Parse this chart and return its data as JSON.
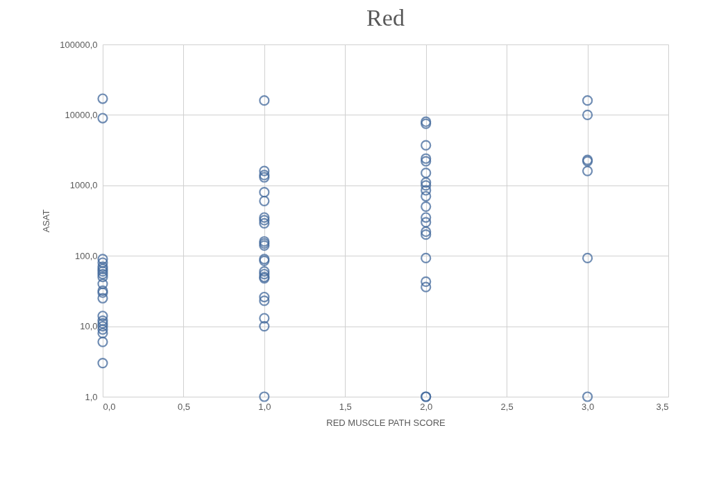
{
  "chart_data": {
    "type": "scatter",
    "title": "Red",
    "xlabel": "RED MUSCLE PATH SCORE",
    "ylabel": "ASAT",
    "series": [
      {
        "color": "#41689b",
        "x": [
          0,
          0,
          0,
          0,
          0,
          0,
          0,
          0,
          0,
          0,
          0,
          0,
          0,
          0,
          0,
          0,
          0,
          0,
          0,
          0,
          0,
          1,
          1,
          1,
          1,
          1,
          1,
          1,
          1,
          1,
          1,
          1,
          1,
          1,
          1,
          1,
          1,
          1,
          1,
          1,
          1,
          1,
          1,
          1,
          2,
          2,
          2,
          2,
          2,
          2,
          2,
          2,
          2,
          2,
          2,
          2,
          2,
          2,
          2,
          2,
          2,
          2,
          2,
          2,
          3,
          3,
          3,
          3,
          3,
          3,
          3
        ],
        "values": [
          17000,
          9000,
          90,
          80,
          70,
          65,
          60,
          55,
          50,
          40,
          32,
          30,
          25,
          14,
          12,
          11,
          10,
          9,
          8,
          6,
          3,
          1,
          16000,
          1600,
          1400,
          1300,
          800,
          600,
          350,
          320,
          290,
          160,
          150,
          140,
          90,
          85,
          60,
          55,
          50,
          48,
          26,
          23,
          13,
          10,
          1,
          8000,
          7500,
          3700,
          2400,
          2200,
          1500,
          1100,
          1000,
          850,
          700,
          500,
          350,
          300,
          220,
          200,
          93,
          43,
          36,
          1,
          16000,
          10000,
          2300,
          2200,
          1600,
          93,
          1
        ]
      }
    ],
    "log": "y",
    "xlim": [
      0,
      3.5
    ],
    "ylim": [
      1,
      100000
    ],
    "xticks": [
      {
        "value": 0,
        "label": "0,0"
      },
      {
        "value": 0.5,
        "label": "0,5"
      },
      {
        "value": 1,
        "label": "1,0"
      },
      {
        "value": 1.5,
        "label": "1,5"
      },
      {
        "value": 2,
        "label": "2,0"
      },
      {
        "value": 2.5,
        "label": "2,5"
      },
      {
        "value": 3,
        "label": "3,0"
      },
      {
        "value": 3.5,
        "label": "3,5"
      }
    ],
    "yticks": [
      {
        "value": 1,
        "label": "1,0"
      },
      {
        "value": 10,
        "label": "10,0"
      },
      {
        "value": 100,
        "label": "100,0"
      },
      {
        "value": 1000,
        "label": "1000,0"
      },
      {
        "value": 10000,
        "label": "10000,0"
      },
      {
        "value": 100000,
        "label": "100000,0"
      }
    ],
    "grid": true,
    "marker": "circle",
    "legend": false
  }
}
